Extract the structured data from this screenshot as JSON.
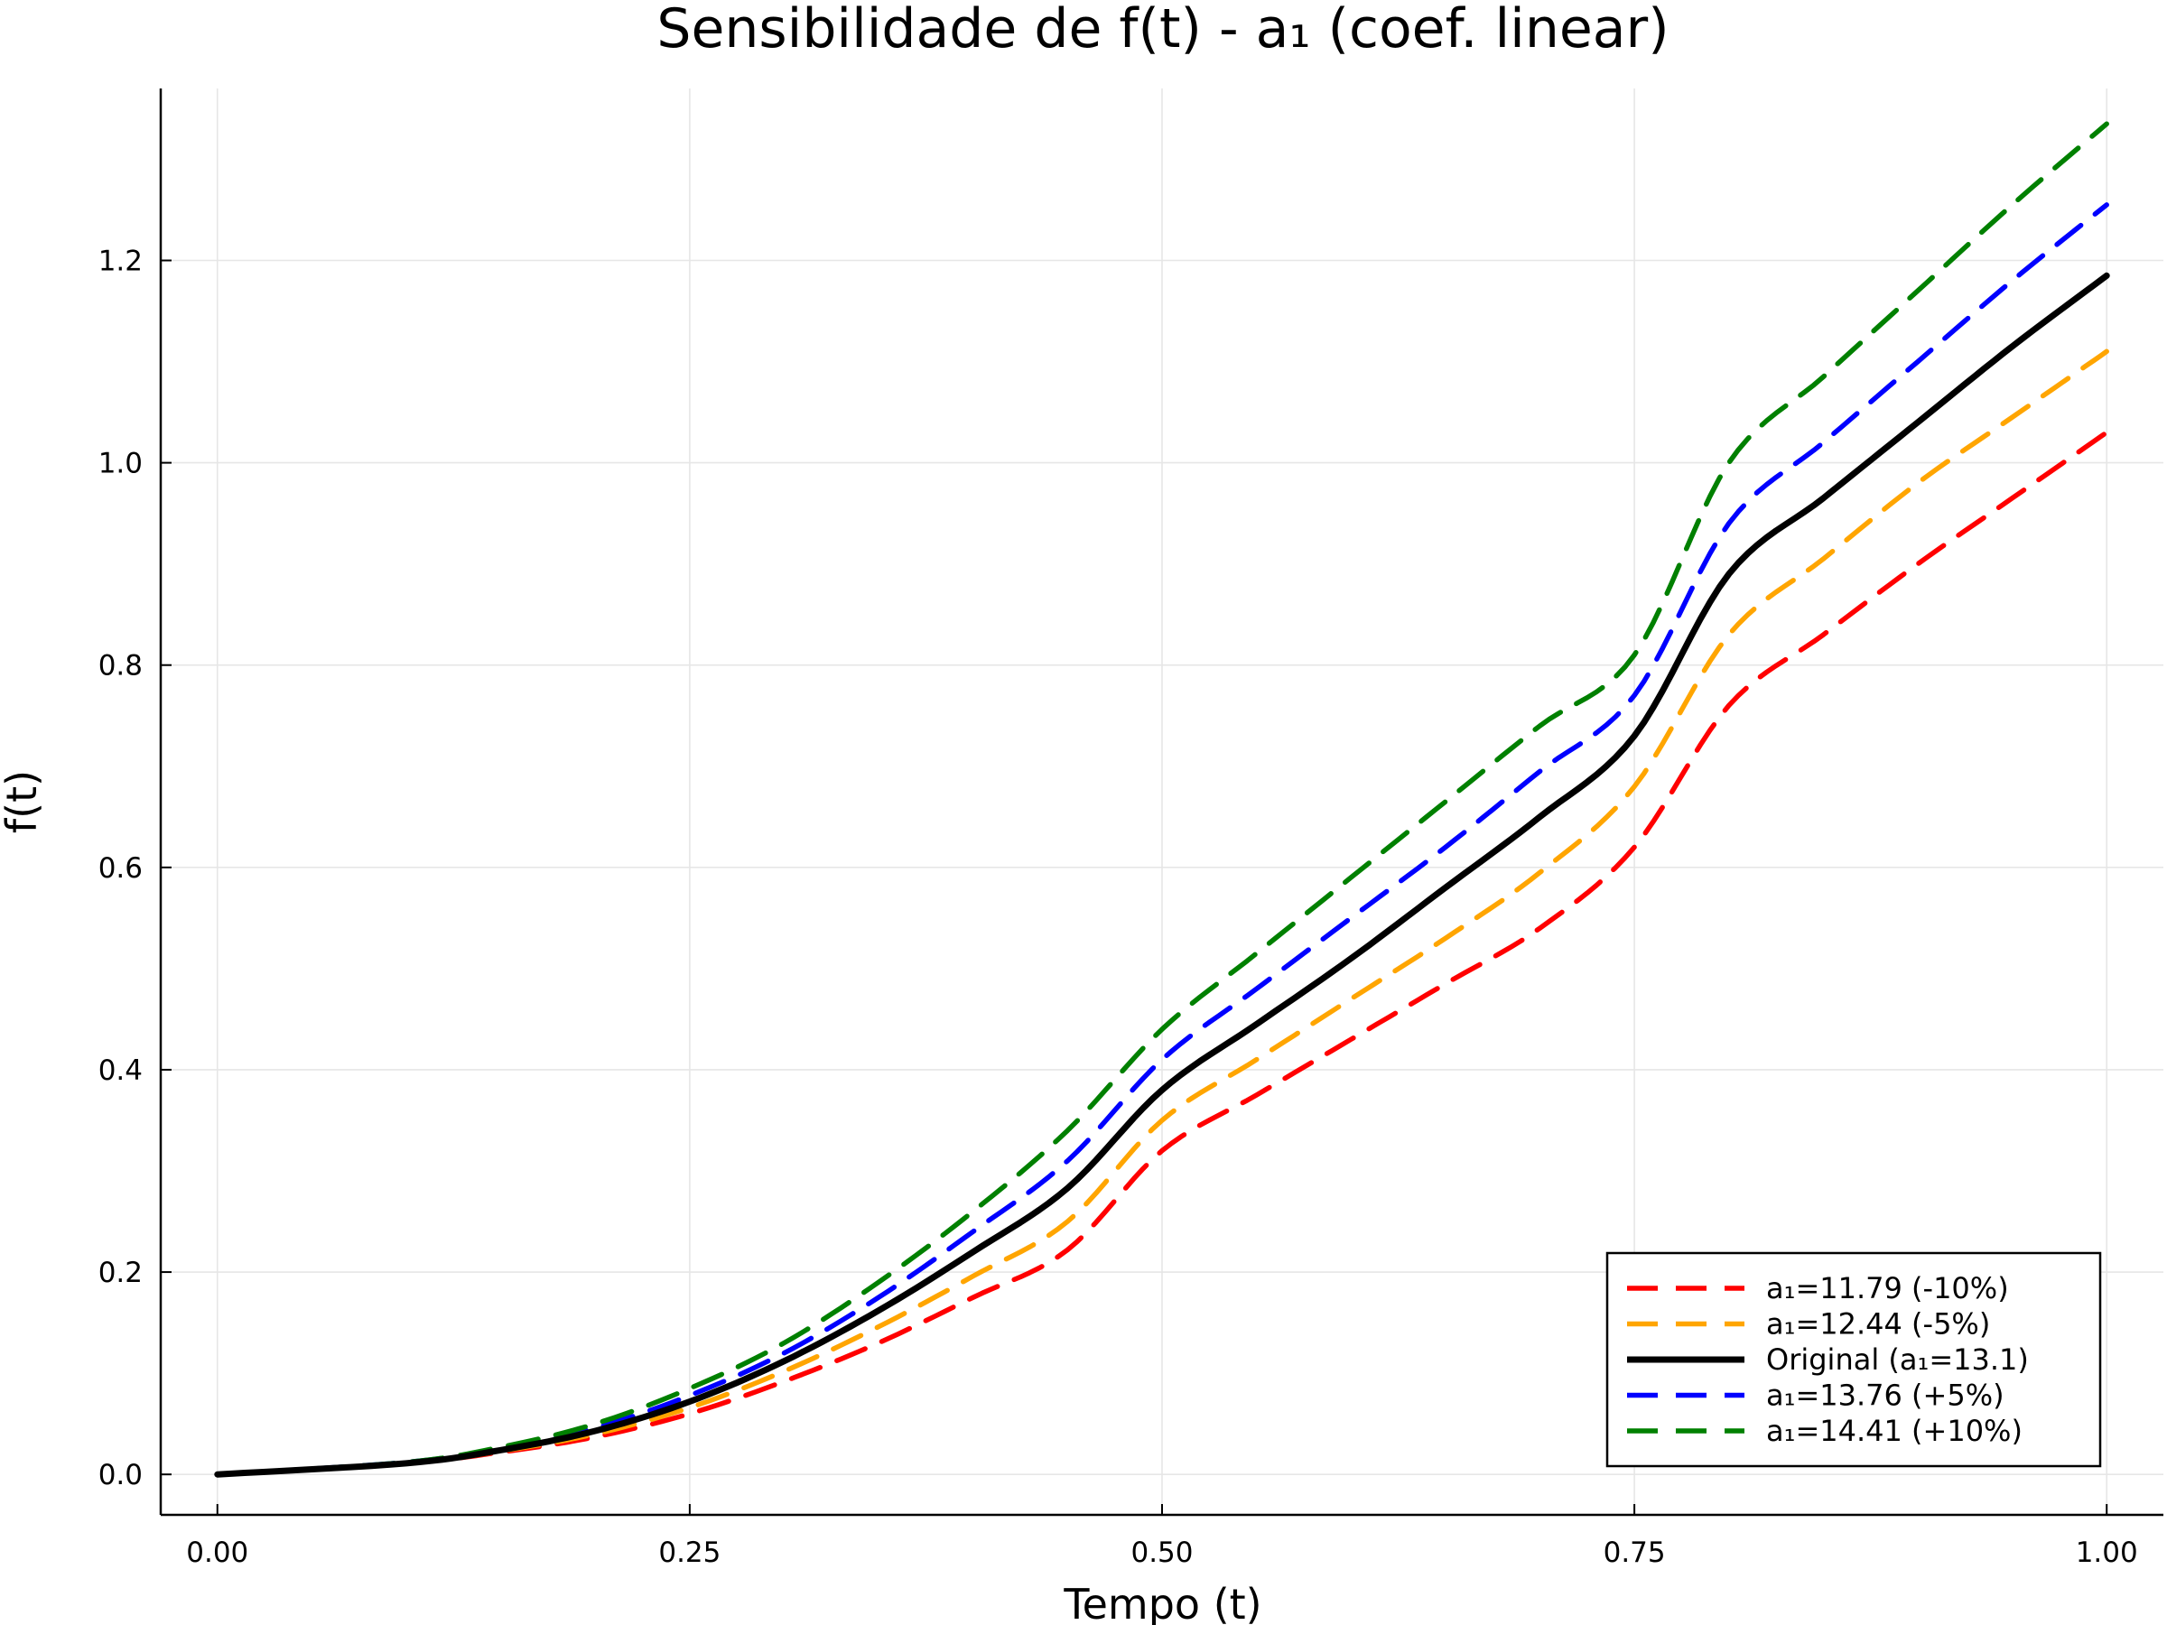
{
  "chart_data": {
    "type": "line",
    "title": "Sensibilidade de f(t) - a₁ (coef. linear)",
    "xlabel": "Tempo (t)",
    "ylabel": "f(t)",
    "xlim": [
      -0.03,
      1.03
    ],
    "ylim": [
      -0.04,
      1.37
    ],
    "xticks": [
      0.0,
      0.25,
      0.5,
      0.75,
      1.0
    ],
    "xtick_labels": [
      "0.00",
      "0.25",
      "0.50",
      "0.75",
      "1.00"
    ],
    "yticks": [
      0.0,
      0.2,
      0.4,
      0.6,
      0.8,
      1.0,
      1.2
    ],
    "ytick_labels": [
      "0.0",
      "0.2",
      "0.4",
      "0.6",
      "0.8",
      "1.0",
      "1.2"
    ],
    "grid": true,
    "legend_position": "bottom-right",
    "x": [
      0.0,
      0.1,
      0.15,
      0.2,
      0.25,
      0.3,
      0.35,
      0.4,
      0.45,
      0.5,
      0.55,
      0.6,
      0.65,
      0.7,
      0.75,
      0.8,
      0.85,
      0.9,
      0.95,
      1.0
    ],
    "series": [
      {
        "name": "a₁=11.79 (-10%)",
        "color": "#ff0000",
        "dash": "dashed",
        "values": [
          0.0,
          0.011,
          0.022,
          0.037,
          0.06,
          0.092,
          0.13,
          0.175,
          0.222,
          0.32,
          0.375,
          0.43,
          0.485,
          0.54,
          0.62,
          0.76,
          0.83,
          0.9,
          0.965,
          1.03
        ]
      },
      {
        "name": "a₁=12.44 (-5%)",
        "color": "#ffa500",
        "dash": "dashed",
        "values": [
          0.0,
          0.011,
          0.023,
          0.04,
          0.066,
          0.102,
          0.146,
          0.196,
          0.25,
          0.35,
          0.41,
          0.47,
          0.53,
          0.595,
          0.68,
          0.83,
          0.905,
          0.98,
          1.045,
          1.11
        ]
      },
      {
        "name": "Original (a₁=13.1)",
        "color": "#000000",
        "dash": "solid",
        "values": [
          0.0,
          0.011,
          0.024,
          0.043,
          0.072,
          0.112,
          0.162,
          0.22,
          0.283,
          0.38,
          0.445,
          0.51,
          0.58,
          0.65,
          0.73,
          0.89,
          0.965,
          1.04,
          1.115,
          1.185
        ]
      },
      {
        "name": "a₁=13.76 (+5%)",
        "color": "#0000ff",
        "dash": "dashed",
        "values": [
          0.0,
          0.012,
          0.026,
          0.046,
          0.078,
          0.12,
          0.175,
          0.24,
          0.31,
          0.41,
          0.48,
          0.55,
          0.62,
          0.695,
          0.77,
          0.94,
          1.02,
          1.1,
          1.18,
          1.255
        ]
      },
      {
        "name": "a₁=14.41 (+10%)",
        "color": "#008000",
        "dash": "dashed",
        "values": [
          0.0,
          0.012,
          0.027,
          0.05,
          0.085,
          0.13,
          0.19,
          0.26,
          0.34,
          0.44,
          0.515,
          0.59,
          0.665,
          0.74,
          0.81,
          1.0,
          1.085,
          1.17,
          1.255,
          1.335
        ]
      }
    ]
  }
}
